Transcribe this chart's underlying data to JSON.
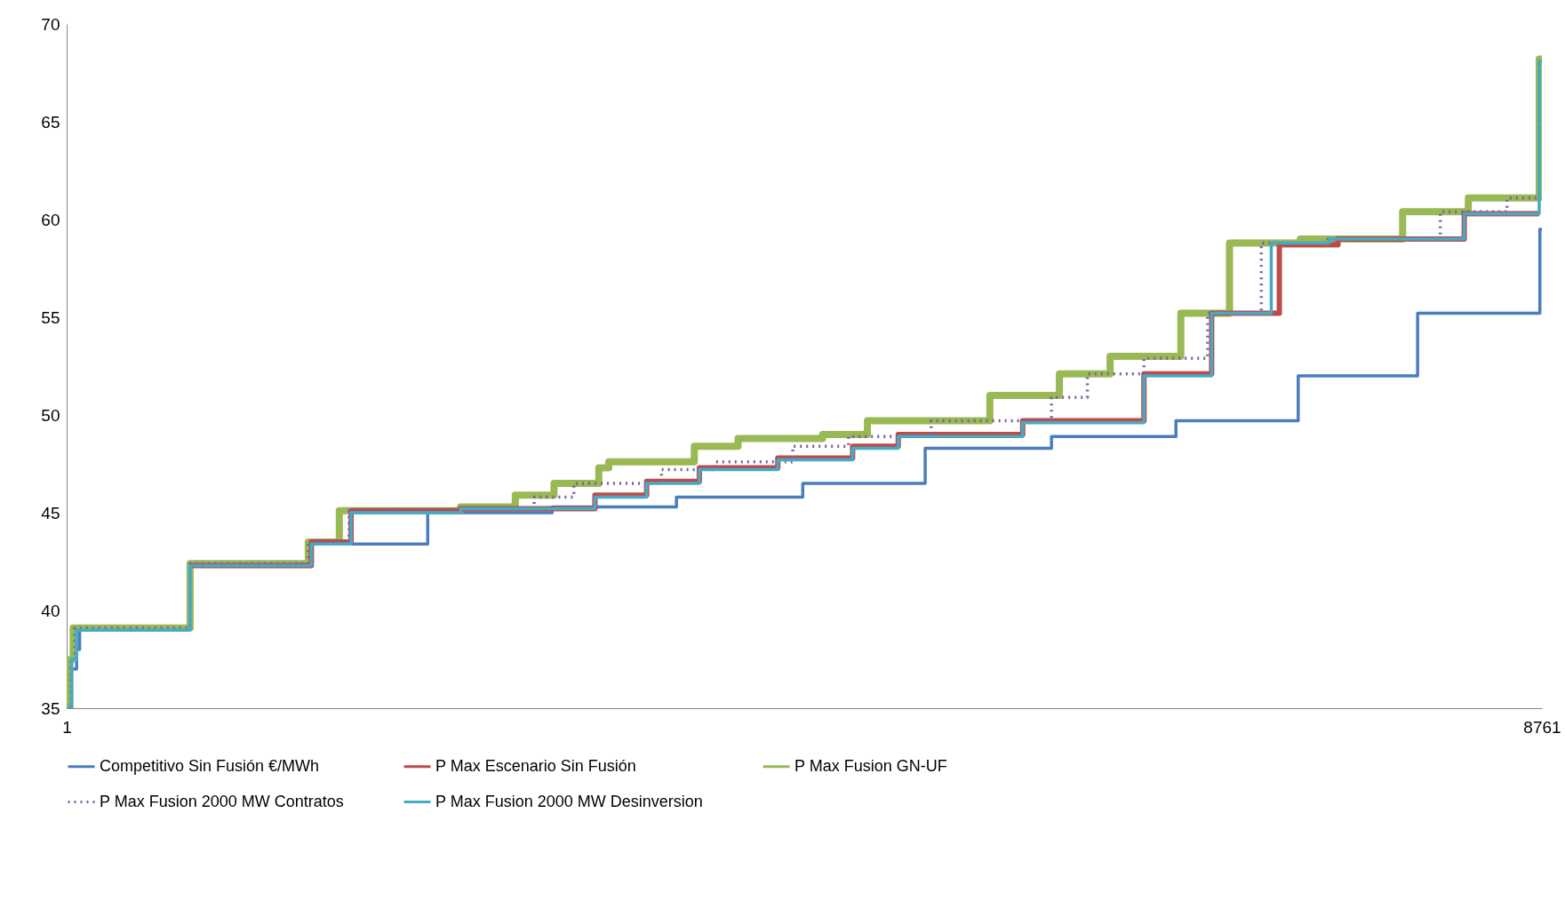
{
  "chart_data": {
    "type": "step",
    "xlim": [
      1,
      8761
    ],
    "xticks": [
      1,
      {
        "value": 8761,
        "label": "8761"
      }
    ],
    "ylim": [
      35,
      70
    ],
    "yticks": [
      35,
      40,
      45,
      50,
      55,
      60,
      65,
      70
    ],
    "grid": false,
    "legend": "bottom",
    "marker": "none",
    "series": [
      {
        "name": "Competitivo Sin Fusión €/MWh",
        "color": "#4a7ebb",
        "line_style": "solid",
        "x": [
          1,
          30,
          60,
          78,
          728,
          1436,
          2145,
          2884,
          3622,
          4372,
          5099,
          5849,
          6588,
          7314,
          8023,
          8749,
          8761
        ],
        "values": [
          35,
          37,
          38,
          39,
          42.3,
          43.4,
          45.0,
          45.3,
          45.8,
          46.5,
          48.3,
          48.9,
          49.7,
          52.0,
          55.2,
          59.5,
          59.5
        ]
      },
      {
        "name": "P Max Escenario Sin Fusión",
        "color": "#be4b48",
        "line_style": "solid",
        "x": [
          734,
          1454,
          1690,
          2340,
          3138,
          3445,
          3758,
          4224,
          4668,
          4939,
          5678,
          6398,
          6800,
          7202,
          7550,
          8300,
          8745
        ],
        "values": [
          42.3,
          43.5,
          45.1,
          45.2,
          45.9,
          46.6,
          47.3,
          47.8,
          48.4,
          49.0,
          49.7,
          52.1,
          55.2,
          58.7,
          59.0,
          60.3,
          60.3
        ]
      },
      {
        "name": "P Max Fusion GN-UF",
        "color": "#98b954",
        "line_style": "solid",
        "x": [
          1,
          20,
          40,
          734,
          1436,
          1620,
          2340,
          2665,
          2895,
          3161,
          3220,
          3728,
          3988,
          4490,
          4756,
          5483,
          5896,
          6197,
          6617,
          6906,
          7326,
          7934,
          8324,
          8745,
          8761
        ],
        "values": [
          35,
          37.5,
          39.1,
          42.4,
          43.5,
          45.1,
          45.3,
          45.9,
          46.5,
          47.3,
          47.6,
          48.4,
          48.8,
          49.0,
          49.7,
          51.0,
          52.1,
          53.0,
          55.2,
          58.8,
          59.0,
          60.4,
          61.1,
          68.2,
          68.2
        ]
      },
      {
        "name": "P Max Fusion 2000 MW Contratos",
        "color": "#7d60a0",
        "line_style": "dotted",
        "x": [
          1,
          25,
          50,
          734,
          1436,
          1678,
          2340,
          2777,
          3013,
          3533,
          3852,
          4313,
          4644,
          5134,
          5849,
          6062,
          6398,
          6776,
          7095,
          7491,
          8158,
          8554,
          8745,
          8761
        ],
        "values": [
          35,
          37.5,
          39.1,
          42.4,
          43.5,
          45.1,
          45.2,
          45.8,
          46.5,
          47.2,
          47.6,
          48.4,
          48.9,
          49.7,
          50.9,
          52.1,
          52.9,
          55.2,
          58.8,
          59.0,
          60.4,
          61.1,
          68.1,
          68.1
        ]
      },
      {
        "name": "P Max Fusion 2000 MW Desinversion",
        "color": "#46aac5",
        "line_style": "solid",
        "x": [
          1,
          30,
          60,
          734,
          1454,
          1690,
          2340,
          3138,
          3445,
          3758,
          4224,
          4668,
          4939,
          5678,
          6398,
          6800,
          7154,
          7500,
          8300,
          8745,
          8761
        ],
        "values": [
          35,
          37.5,
          39.0,
          42.3,
          43.4,
          45.0,
          45.2,
          45.8,
          46.5,
          47.2,
          47.7,
          48.3,
          48.9,
          49.6,
          52.0,
          55.2,
          58.8,
          59.0,
          60.3,
          68.1,
          68.1
        ]
      }
    ]
  }
}
